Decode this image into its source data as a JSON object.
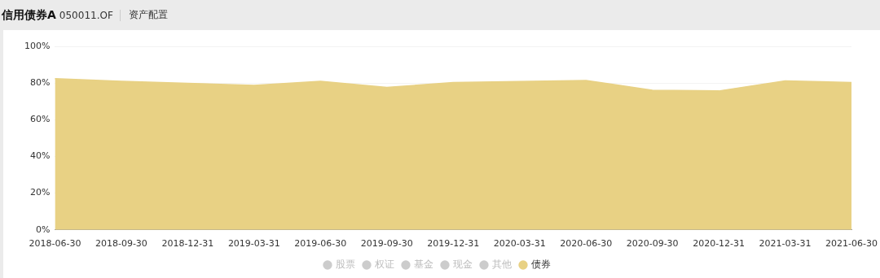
{
  "chart_data": {
    "type": "area",
    "title": "信用债券A",
    "subtitle": "050011.OF",
    "annotations": [
      "资产配置"
    ],
    "categories": [
      "2018-06-30",
      "2018-09-30",
      "2018-12-31",
      "2019-03-31",
      "2019-06-30",
      "2019-09-30",
      "2019-12-31",
      "2020-03-31",
      "2020-06-30",
      "2020-09-30",
      "2020-12-31",
      "2021-03-31",
      "2021-06-30"
    ],
    "series": [
      {
        "name": "股票",
        "color": "#cccccc",
        "values": [
          null,
          null,
          null,
          null,
          null,
          null,
          null,
          null,
          null,
          null,
          null,
          null,
          null
        ]
      },
      {
        "name": "权证",
        "color": "#cccccc",
        "values": [
          null,
          null,
          null,
          null,
          null,
          null,
          null,
          null,
          null,
          null,
          null,
          null,
          null
        ]
      },
      {
        "name": "基金",
        "color": "#cccccc",
        "values": [
          null,
          null,
          null,
          null,
          null,
          null,
          null,
          null,
          null,
          null,
          null,
          null,
          null
        ]
      },
      {
        "name": "现金",
        "color": "#cccccc",
        "values": [
          null,
          null,
          null,
          null,
          null,
          null,
          null,
          null,
          null,
          null,
          null,
          null,
          null
        ]
      },
      {
        "name": "其他",
        "color": "#cccccc",
        "values": [
          null,
          null,
          null,
          null,
          null,
          null,
          null,
          null,
          null,
          null,
          null,
          null,
          null
        ]
      },
      {
        "name": "债券",
        "color": "#e8d184",
        "values": [
          82.4,
          81.0,
          79.9,
          78.7,
          81.0,
          77.6,
          80.3,
          80.8,
          81.4,
          76.1,
          75.7,
          81.2,
          80.3
        ]
      }
    ],
    "ylim": [
      0,
      100
    ],
    "yticks": [
      {
        "value": 0,
        "label": "0%"
      },
      {
        "value": 20,
        "label": "20%"
      },
      {
        "value": 40,
        "label": "40%"
      },
      {
        "value": 60,
        "label": "60%"
      },
      {
        "value": 80,
        "label": "80%"
      },
      {
        "value": 100,
        "label": "100%"
      }
    ],
    "grid": "y",
    "legend": "bottom",
    "marker": "none"
  }
}
